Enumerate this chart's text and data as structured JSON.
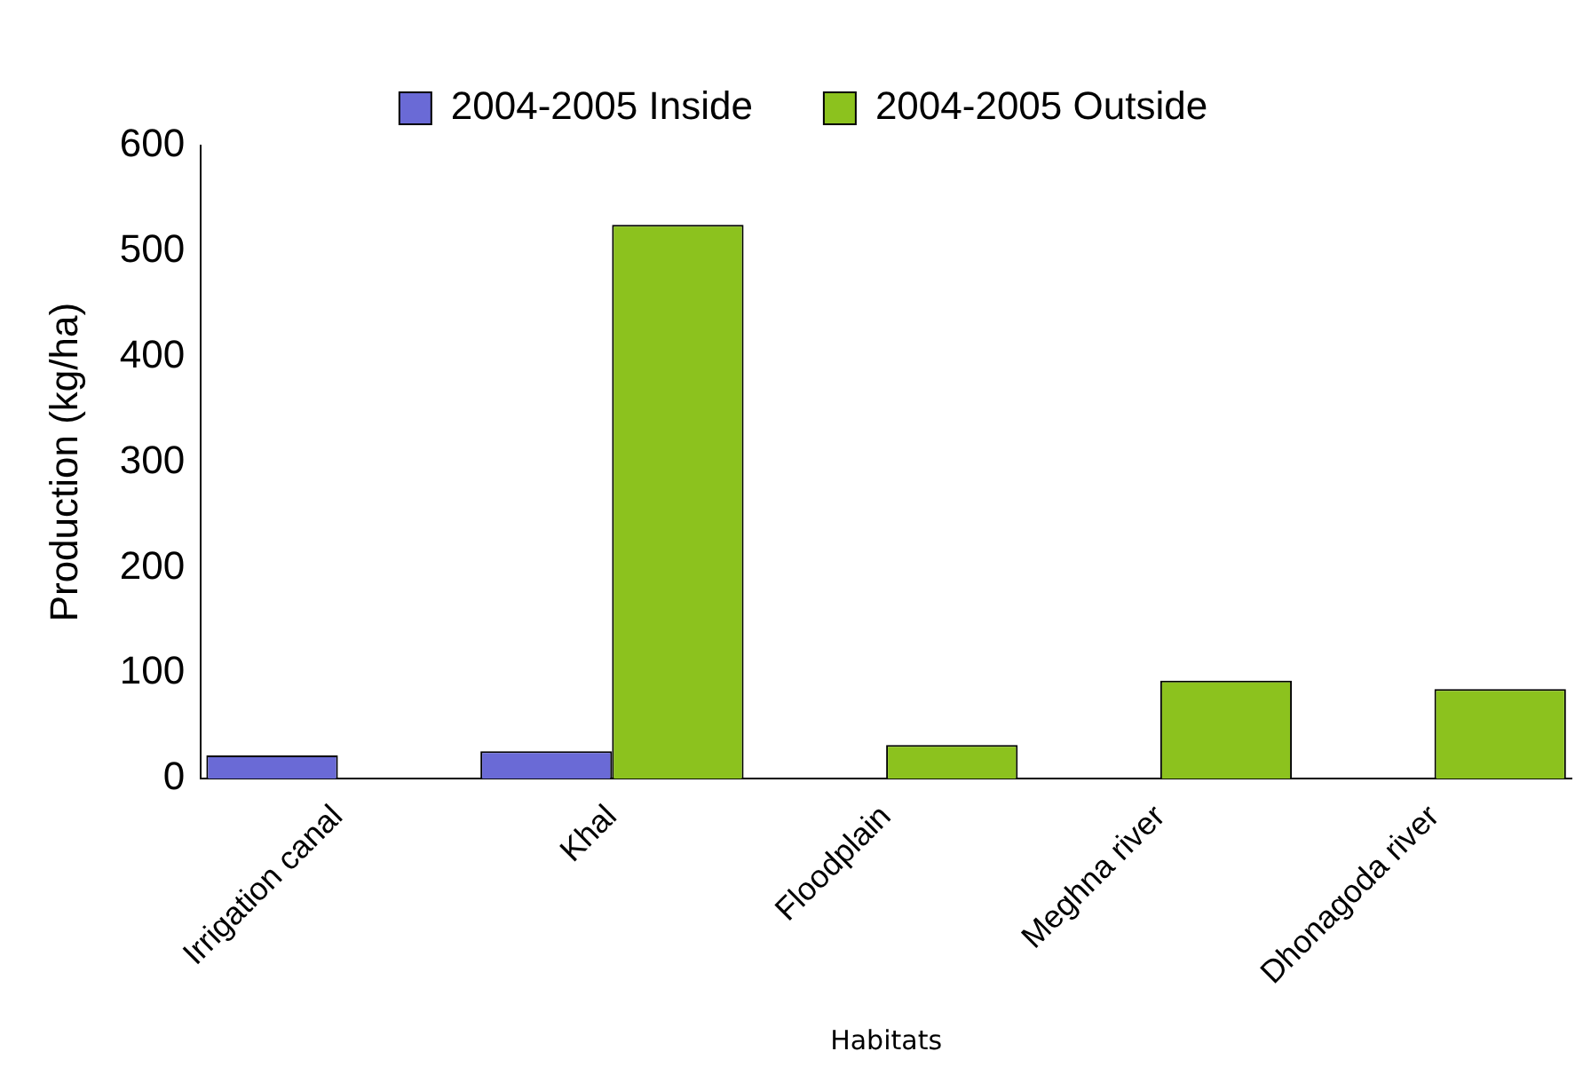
{
  "chart_data": {
    "type": "bar",
    "xlabel": "Habitats",
    "ylabel": "Production (kg/ha)",
    "categories": [
      "Irrigation canal",
      "Khal",
      "Floodplain",
      "Meghna river",
      "Dhonagoda river"
    ],
    "series": [
      {
        "name": "2004-2005 Inside",
        "color": "#6a6ad6",
        "values": [
          22,
          26,
          null,
          null,
          null
        ]
      },
      {
        "name": "2004-2005 Outside",
        "color": "#8cc21e",
        "values": [
          null,
          525,
          32,
          93,
          85
        ]
      }
    ],
    "ylim": [
      0,
      600
    ],
    "yticks": [
      0,
      100,
      200,
      300,
      400,
      500,
      600
    ],
    "grid": false,
    "legend": "top"
  }
}
